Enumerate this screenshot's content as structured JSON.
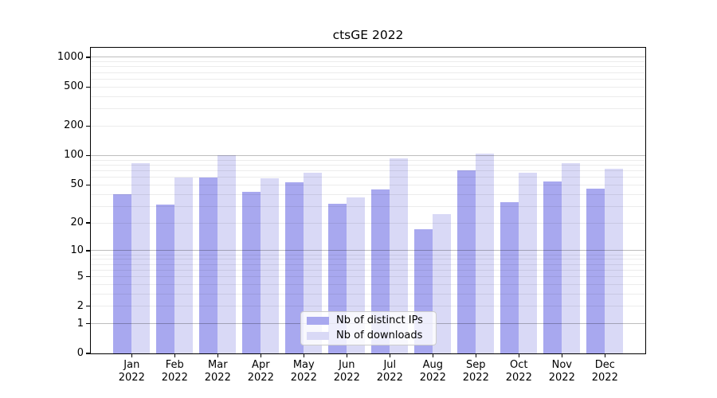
{
  "chart_data": {
    "type": "bar",
    "title": "ctsGE 2022",
    "categories": [
      "Jan",
      "Feb",
      "Mar",
      "Apr",
      "May",
      "Jun",
      "Jul",
      "Aug",
      "Sep",
      "Oct",
      "Nov",
      "Dec"
    ],
    "year_label": "2022",
    "series": [
      {
        "name": "Nb of distinct IPs",
        "color": "#a8a8ef",
        "values": [
          40,
          31,
          60,
          42,
          53,
          32,
          45,
          17,
          70,
          33,
          54,
          46
        ]
      },
      {
        "name": "Nb of downloads",
        "color": "#d9d9f6",
        "values": [
          84,
          60,
          100,
          58,
          67,
          37,
          93,
          25,
          104,
          67,
          83,
          74
        ]
      }
    ],
    "y_axis": {
      "scale": "log10(1+v)",
      "ticks": [
        0,
        1,
        2,
        5,
        10,
        20,
        50,
        100,
        200,
        500,
        1000
      ],
      "major_gridlines": [
        1,
        10,
        100,
        1000
      ],
      "minor_gridlines": [
        2,
        3,
        4,
        5,
        6,
        7,
        8,
        9,
        20,
        30,
        40,
        50,
        60,
        70,
        80,
        90,
        200,
        300,
        400,
        500,
        600,
        700,
        800,
        900
      ],
      "ylim": [
        0,
        1250
      ]
    },
    "x_axis": {
      "tick_label_format": "month over year"
    },
    "legend": {
      "position": "lower center",
      "entries": [
        "Nb of distinct IPs",
        "Nb of downloads"
      ]
    },
    "grid": true,
    "colors": {
      "background": "#ffffff",
      "spine": "#000000",
      "major_grid": "#bdbdbd",
      "minor_grid": "#ececec",
      "text": "#000000"
    }
  }
}
